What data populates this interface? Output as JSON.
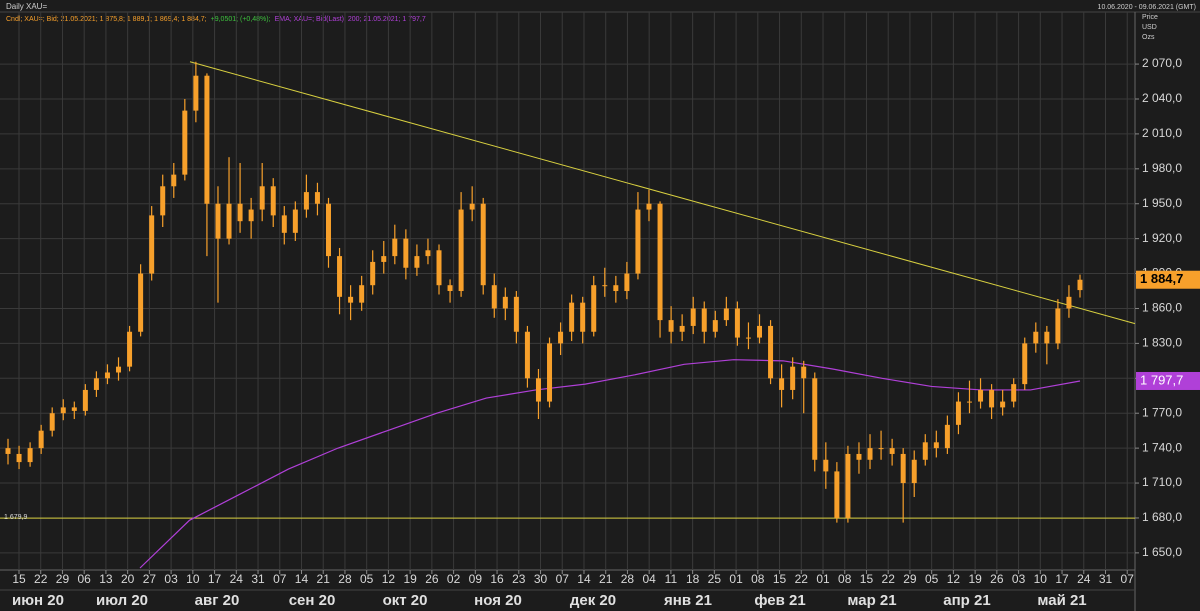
{
  "chart_data": {
    "type": "candlestick",
    "title": "Daily XAU=",
    "date_range": "10.06.2020 - 09.06.2021 (GMT)",
    "legend_parts": [
      {
        "text": "Cndl; XAU=; Bid; 21.05.2021; 1 875,8; 1 889,1; 1 869,4; 1 884,7;",
        "color": "#f7a02b"
      },
      {
        "text": "+9,0501; (+0,48%);",
        "color": "#3ec23e"
      },
      {
        "text": "EMA; XAU=; Bid(Last); 200; 21.05.2021; 1 797,7",
        "color": "#b040d8"
      }
    ],
    "y_axis_label": [
      "Price",
      "USD",
      "Ozs"
    ],
    "ylim": [
      1637,
      2101
    ],
    "yticks": [
      {
        "value": 1650,
        "label": "1 650,0"
      },
      {
        "value": 1680,
        "label": "1 680,0"
      },
      {
        "value": 1710,
        "label": "1 710,0"
      },
      {
        "value": 1740,
        "label": "1 740,0"
      },
      {
        "value": 1770,
        "label": "1 770,0"
      },
      {
        "value": 1800,
        "label": "1 800,0"
      },
      {
        "value": 1830,
        "label": "1 830,0"
      },
      {
        "value": 1860,
        "label": "1 860,0"
      },
      {
        "value": 1890,
        "label": "1 890,0"
      },
      {
        "value": 1920,
        "label": "1 920,0"
      },
      {
        "value": 1950,
        "label": "1 950,0"
      },
      {
        "value": 1980,
        "label": "1 980,0"
      },
      {
        "value": 2010,
        "label": "2 010,0"
      },
      {
        "value": 2040,
        "label": "2 040,0"
      },
      {
        "value": 2070,
        "label": "2 070,0"
      }
    ],
    "categories": [
      "15",
      "22",
      "29",
      "06",
      "13",
      "20",
      "27",
      "03",
      "10",
      "17",
      "24",
      "31",
      "07",
      "14",
      "21",
      "28",
      "05",
      "12",
      "19",
      "26",
      "02",
      "09",
      "16",
      "23",
      "30",
      "07",
      "14",
      "21",
      "28",
      "04",
      "11",
      "18",
      "25",
      "01",
      "08",
      "15",
      "22",
      "01",
      "08",
      "15",
      "22",
      "29",
      "05",
      "12",
      "19",
      "26",
      "03",
      "10",
      "17",
      "24",
      "31",
      "07"
    ],
    "months": [
      "июн 20",
      "июл 20",
      "авг 20",
      "сен 20",
      "окт 20",
      "ноя 20",
      "дек 20",
      "янв 21",
      "фев 21",
      "мар 21",
      "апр 21",
      "май 21"
    ],
    "grid": true,
    "candle_color": "#f7a02b",
    "candles": [
      [
        1740,
        1748,
        1726,
        1735
      ],
      [
        1735,
        1742,
        1722,
        1728
      ],
      [
        1728,
        1745,
        1724,
        1740
      ],
      [
        1740,
        1760,
        1735,
        1755
      ],
      [
        1755,
        1775,
        1750,
        1770
      ],
      [
        1770,
        1782,
        1764,
        1775
      ],
      [
        1775,
        1780,
        1765,
        1772
      ],
      [
        1772,
        1795,
        1768,
        1790
      ],
      [
        1790,
        1806,
        1784,
        1800
      ],
      [
        1800,
        1812,
        1795,
        1805
      ],
      [
        1805,
        1818,
        1798,
        1810
      ],
      [
        1810,
        1845,
        1806,
        1840
      ],
      [
        1840,
        1898,
        1836,
        1890
      ],
      [
        1890,
        1948,
        1884,
        1940
      ],
      [
        1940,
        1975,
        1930,
        1965
      ],
      [
        1965,
        1985,
        1955,
        1975
      ],
      [
        1975,
        2040,
        1970,
        2030
      ],
      [
        2030,
        2072,
        2020,
        2060
      ],
      [
        2060,
        2062,
        1905,
        1950
      ],
      [
        1950,
        1965,
        1865,
        1920
      ],
      [
        1920,
        1990,
        1915,
        1950
      ],
      [
        1950,
        1985,
        1925,
        1935
      ],
      [
        1935,
        1955,
        1920,
        1945
      ],
      [
        1945,
        1985,
        1935,
        1965
      ],
      [
        1965,
        1972,
        1930,
        1940
      ],
      [
        1940,
        1948,
        1915,
        1925
      ],
      [
        1925,
        1952,
        1918,
        1945
      ],
      [
        1945,
        1975,
        1938,
        1960
      ],
      [
        1960,
        1968,
        1940,
        1950
      ],
      [
        1950,
        1955,
        1895,
        1905
      ],
      [
        1905,
        1912,
        1855,
        1870
      ],
      [
        1870,
        1880,
        1850,
        1865
      ],
      [
        1865,
        1888,
        1858,
        1880
      ],
      [
        1880,
        1910,
        1872,
        1900
      ],
      [
        1900,
        1918,
        1890,
        1905
      ],
      [
        1905,
        1932,
        1898,
        1920
      ],
      [
        1920,
        1928,
        1885,
        1895
      ],
      [
        1895,
        1915,
        1888,
        1905
      ],
      [
        1905,
        1920,
        1898,
        1910
      ],
      [
        1910,
        1915,
        1872,
        1880
      ],
      [
        1880,
        1885,
        1865,
        1875
      ],
      [
        1875,
        1960,
        1870,
        1945
      ],
      [
        1945,
        1965,
        1935,
        1950
      ],
      [
        1950,
        1955,
        1872,
        1880
      ],
      [
        1880,
        1890,
        1852,
        1860
      ],
      [
        1860,
        1878,
        1850,
        1870
      ],
      [
        1870,
        1875,
        1830,
        1840
      ],
      [
        1840,
        1845,
        1792,
        1800
      ],
      [
        1800,
        1808,
        1765,
        1780
      ],
      [
        1780,
        1835,
        1775,
        1830
      ],
      [
        1830,
        1848,
        1820,
        1840
      ],
      [
        1840,
        1872,
        1832,
        1865
      ],
      [
        1865,
        1870,
        1830,
        1840
      ],
      [
        1840,
        1888,
        1836,
        1880
      ],
      [
        1880,
        1895,
        1870,
        1880
      ],
      [
        1880,
        1888,
        1865,
        1875
      ],
      [
        1875,
        1900,
        1868,
        1890
      ],
      [
        1890,
        1960,
        1885,
        1945
      ],
      [
        1945,
        1962,
        1935,
        1950
      ],
      [
        1950,
        1952,
        1835,
        1850
      ],
      [
        1850,
        1862,
        1830,
        1840
      ],
      [
        1840,
        1855,
        1832,
        1845
      ],
      [
        1845,
        1870,
        1838,
        1860
      ],
      [
        1860,
        1866,
        1830,
        1840
      ],
      [
        1840,
        1858,
        1835,
        1850
      ],
      [
        1850,
        1870,
        1845,
        1860
      ],
      [
        1860,
        1866,
        1828,
        1835
      ],
      [
        1835,
        1848,
        1825,
        1835
      ],
      [
        1835,
        1855,
        1830,
        1845
      ],
      [
        1845,
        1850,
        1795,
        1800
      ],
      [
        1800,
        1812,
        1775,
        1790
      ],
      [
        1790,
        1818,
        1782,
        1810
      ],
      [
        1810,
        1815,
        1770,
        1800
      ],
      [
        1800,
        1805,
        1720,
        1730
      ],
      [
        1730,
        1745,
        1705,
        1720
      ],
      [
        1720,
        1728,
        1676,
        1680
      ],
      [
        1680,
        1742,
        1676,
        1735
      ],
      [
        1735,
        1745,
        1718,
        1730
      ],
      [
        1730,
        1752,
        1722,
        1740
      ],
      [
        1740,
        1755,
        1730,
        1740
      ],
      [
        1740,
        1748,
        1725,
        1735
      ],
      [
        1735,
        1740,
        1676,
        1710
      ],
      [
        1710,
        1738,
        1698,
        1730
      ],
      [
        1730,
        1752,
        1725,
        1745
      ],
      [
        1745,
        1755,
        1732,
        1740
      ],
      [
        1740,
        1768,
        1735,
        1760
      ],
      [
        1760,
        1788,
        1752,
        1780
      ],
      [
        1780,
        1798,
        1770,
        1780
      ],
      [
        1780,
        1800,
        1774,
        1790
      ],
      [
        1790,
        1795,
        1765,
        1775
      ],
      [
        1775,
        1790,
        1768,
        1780
      ],
      [
        1780,
        1800,
        1775,
        1795
      ],
      [
        1795,
        1835,
        1790,
        1830
      ],
      [
        1830,
        1848,
        1822,
        1840
      ],
      [
        1840,
        1845,
        1812,
        1830
      ],
      [
        1830,
        1868,
        1825,
        1860
      ],
      [
        1860,
        1880,
        1852,
        1870
      ],
      [
        1875.8,
        1889.1,
        1869.4,
        1884.7
      ]
    ],
    "last_label": "1 884,7",
    "ema": {
      "color": "#b040d8",
      "values": [
        1637,
        1678,
        1700,
        1722,
        1740,
        1755,
        1770,
        1783,
        1790,
        1795,
        1803,
        1812,
        1816,
        1815,
        1808,
        1800,
        1793,
        1790,
        1790,
        1797.7
      ],
      "last_label": "1 797,7"
    },
    "hline": {
      "value": 1679.9,
      "label": "1 679,9",
      "color": "#d8d040"
    },
    "trendline": {
      "values": [
        2072,
        1847
      ],
      "color": "#d8d040"
    }
  }
}
